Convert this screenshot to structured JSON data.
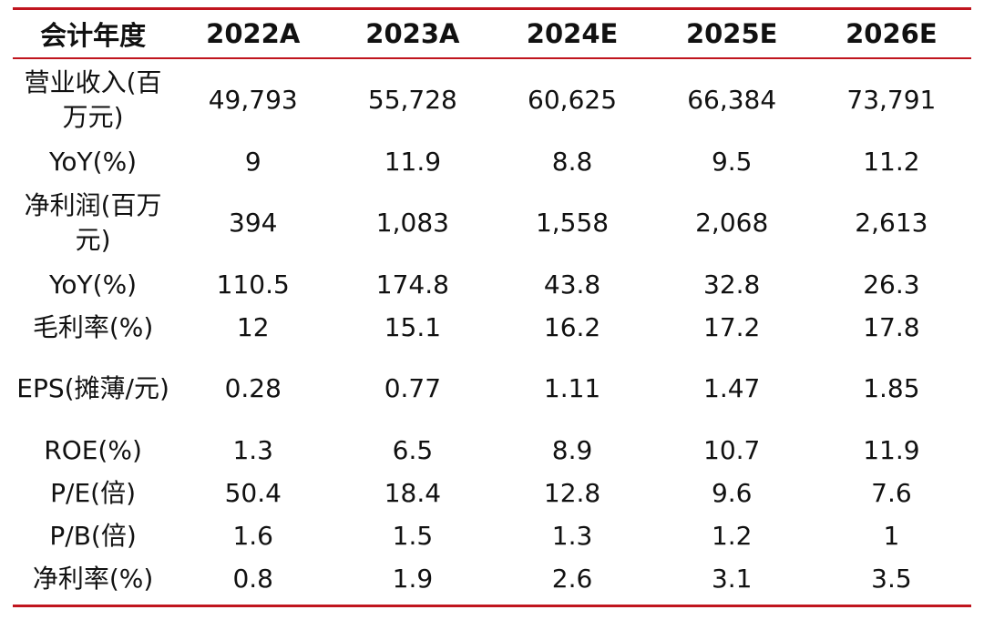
{
  "colors": {
    "rule": "#c0151e",
    "text": "#111111"
  },
  "table": {
    "header": [
      "会计年度",
      "2022A",
      "2023A",
      "2024E",
      "2025E",
      "2026E"
    ],
    "rows": [
      {
        "label": "营业收入(百万元)",
        "values": [
          "49,793",
          "55,728",
          "60,625",
          "66,384",
          "73,791"
        ]
      },
      {
        "label": "YoY(%)",
        "values": [
          "9",
          "11.9",
          "8.8",
          "9.5",
          "11.2"
        ]
      },
      {
        "label": "净利润(百万元)",
        "values": [
          "394",
          "1,083",
          "1,558",
          "2,068",
          "2,613"
        ]
      },
      {
        "label": "YoY(%)",
        "values": [
          "110.5",
          "174.8",
          "43.8",
          "32.8",
          "26.3"
        ]
      },
      {
        "label": "毛利率(%)",
        "values": [
          "12",
          "15.1",
          "16.2",
          "17.2",
          "17.8"
        ]
      },
      {
        "label": "EPS(摊薄/元)",
        "values": [
          "0.28",
          "0.77",
          "1.11",
          "1.47",
          "1.85"
        ]
      },
      {
        "label": "ROE(%)",
        "values": [
          "1.3",
          "6.5",
          "8.9",
          "10.7",
          "11.9"
        ]
      },
      {
        "label": "P/E(倍)",
        "values": [
          "50.4",
          "18.4",
          "12.8",
          "9.6",
          "7.6"
        ]
      },
      {
        "label": "P/B(倍)",
        "values": [
          "1.6",
          "1.5",
          "1.3",
          "1.2",
          "1"
        ]
      },
      {
        "label": "净利率(%)",
        "values": [
          "0.8",
          "1.9",
          "2.6",
          "3.1",
          "3.5"
        ]
      }
    ]
  }
}
